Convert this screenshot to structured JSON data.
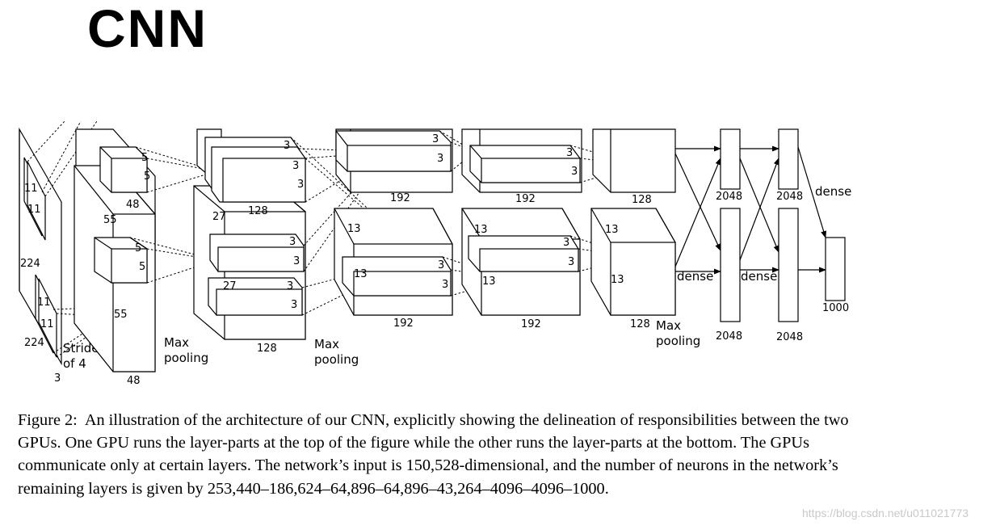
{
  "title": "CNN",
  "diagram": {
    "labels": {
      "in_11a": "11",
      "in_11b": "11",
      "in_224a": "224",
      "in_11c": "11",
      "in_11d": "11",
      "in_224b": "224",
      "in_3": "3",
      "stride1": "Stride",
      "stride2": "of 4",
      "c1_5a": "5",
      "c1_5b": "5",
      "c1_48a": "48",
      "c1_55a": "55",
      "c1_5c": "5",
      "c1_5d": "5",
      "c1_55b": "55",
      "c1_48b": "48",
      "c2_3a": "3",
      "c2_3b": "3",
      "c2_3c": "3",
      "c2_27a": "27",
      "c2_128a": "128",
      "c2_3d": "3",
      "c2_3e": "3",
      "c2_27b": "27",
      "c2_3f": "3",
      "c2_3g": "3",
      "c2_128b": "128",
      "mp1a": "Max",
      "mp1b": "pooling",
      "mp2a": "Max",
      "mp2b": "pooling",
      "c3_3a": "3",
      "c3_3b": "3",
      "c3_192a": "192",
      "c3_13a": "13",
      "c3_13b": "13",
      "c3_3c": "3",
      "c3_3d": "3",
      "c3_192b": "192",
      "c4_3a": "3",
      "c4_3b": "3",
      "c4_192a": "192",
      "c4_13a": "13",
      "c4_3c": "3",
      "c4_3d": "3",
      "c4_13b": "13",
      "c4_192b": "192",
      "c5_128a": "128",
      "c5_13a": "13",
      "c5_13b": "13",
      "c5_128b": "128",
      "mp3a": "Max",
      "mp3b": "pooling",
      "f6_2048a": "2048",
      "f6_2048b": "2048",
      "f7_2048a": "2048",
      "f7_2048b": "2048",
      "dense_a": "dense",
      "dense_b": "dense",
      "dense_c": "dense",
      "out_1000": "1000"
    }
  },
  "caption": {
    "label": "Figure 2:",
    "text": "An illustration of the architecture of our CNN, explicitly showing the delineation of responsibilities between the two GPUs. One GPU runs the layer-parts at the top of the figure while the other runs the layer-parts at the bottom. The GPUs communicate only at certain layers. The network’s input is 150,528-dimensional, and the number of neurons in the network’s remaining layers is given by 253,440–186,624–64,896–64,896–43,264–4096–4096–1000."
  },
  "watermark": "https://blog.csdn.net/u011021773"
}
